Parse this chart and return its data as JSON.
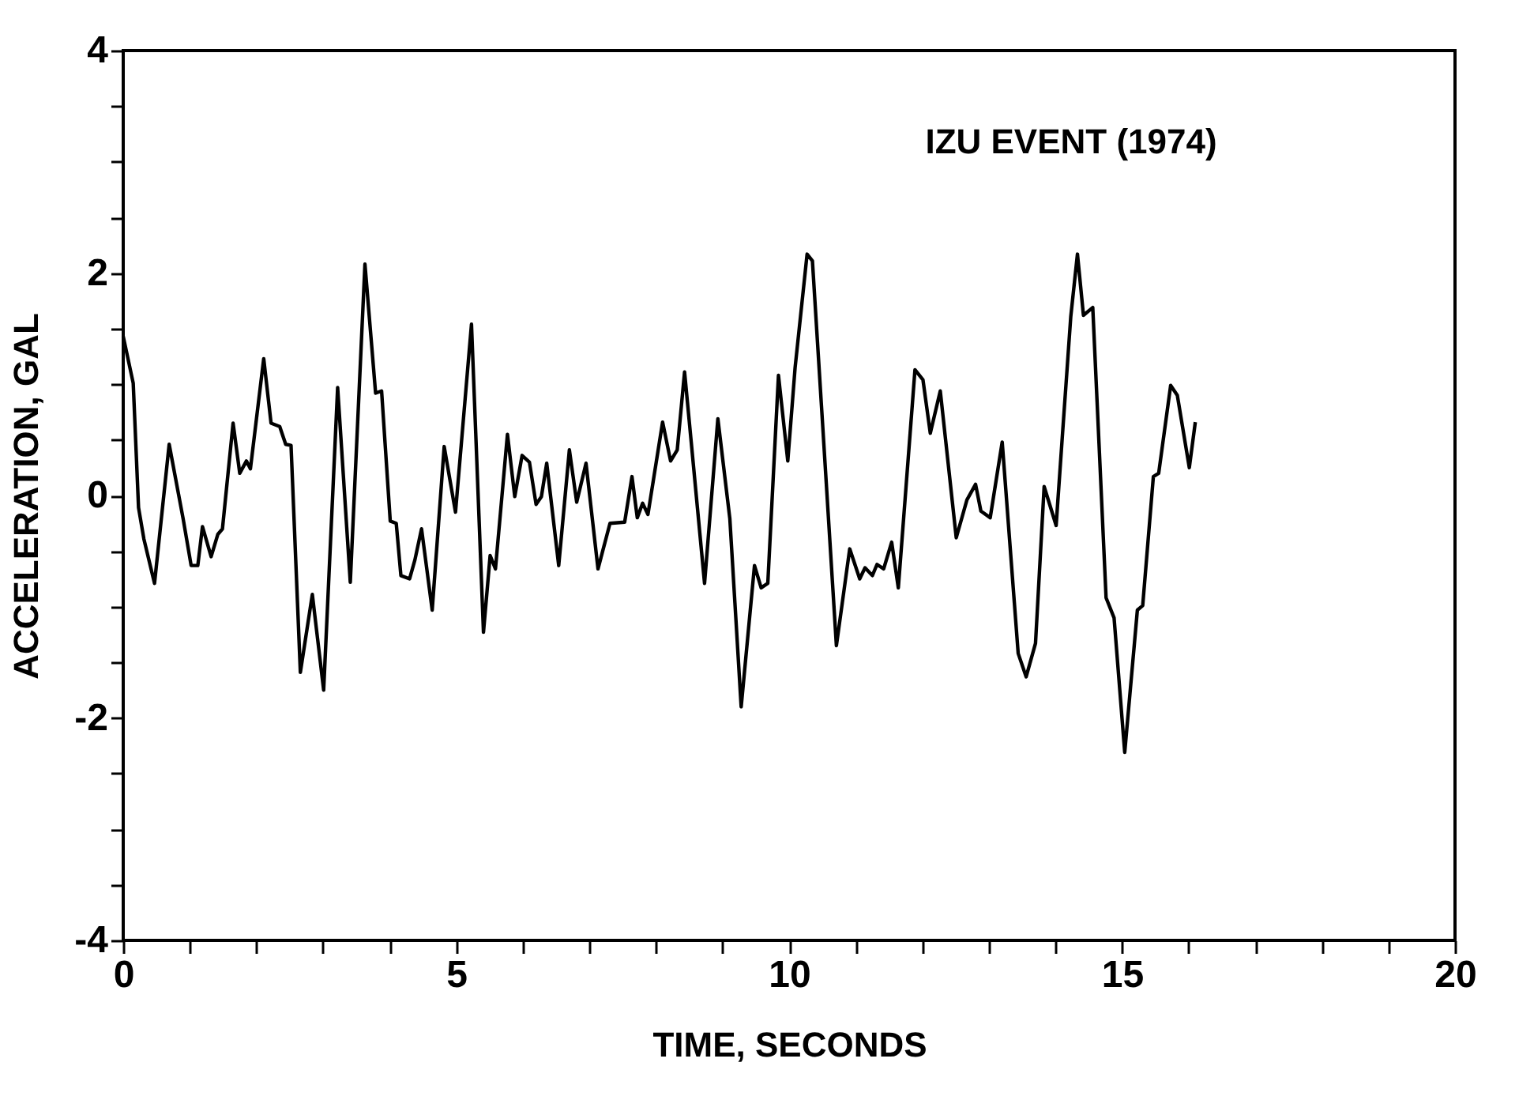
{
  "chart_data": {
    "type": "line",
    "title": "IZU  EVENT  (1974)",
    "xlabel": "TIME,  SECONDS",
    "ylabel": "ACCELERATION,  GAL",
    "series": [
      {
        "color": "#000000",
        "x": [
          0,
          0.15,
          0.23,
          0.31,
          0.47,
          0.69,
          0.9,
          1.02,
          1.12,
          1.19,
          1.32,
          1.42,
          1.49,
          1.65,
          1.75,
          1.85,
          1.91,
          2.11,
          2.22,
          2.35,
          2.44,
          2.52,
          2.66,
          2.84,
          3.01,
          3.22,
          3.41,
          3.63,
          3.79,
          3.88,
          4.01,
          4.1,
          4.17,
          4.3,
          4.38,
          4.48,
          4.64,
          4.82,
          4.99,
          5.23,
          5.41,
          5.51,
          5.59,
          5.77,
          5.88,
          5.99,
          6.1,
          6.2,
          6.28,
          6.36,
          6.54,
          6.7,
          6.81,
          6.95,
          7.13,
          7.31,
          7.53,
          7.64,
          7.72,
          7.8,
          7.88,
          8.1,
          8.22,
          8.32,
          8.43,
          8.53,
          8.73,
          8.93,
          9.11,
          9.28,
          9.48,
          9.58,
          9.68,
          9.84,
          9.98,
          10.09,
          10.27,
          10.35,
          10.71,
          10.91,
          11.06,
          11.14,
          11.25,
          11.32,
          11.42,
          11.54,
          11.64,
          11.89,
          12.01,
          12.12,
          12.27,
          12.51,
          12.67,
          12.8,
          12.88,
          13.02,
          13.2,
          13.44,
          13.56,
          13.7,
          13.83,
          14.01,
          14.11,
          14.23,
          14.33,
          14.42,
          14.56,
          14.76,
          14.88,
          15.04,
          15.23,
          15.31,
          15.47,
          15.55,
          15.73,
          15.83,
          16.01,
          16.1
        ],
        "values": [
          1.43,
          1.01,
          -0.11,
          -0.39,
          -0.79,
          0.46,
          -0.21,
          -0.63,
          -0.63,
          -0.28,
          -0.55,
          -0.35,
          -0.3,
          0.65,
          0.2,
          0.31,
          0.24,
          1.23,
          0.65,
          0.62,
          0.46,
          0.45,
          -1.59,
          -0.89,
          -1.75,
          0.97,
          -0.78,
          2.08,
          0.92,
          0.94,
          -0.23,
          -0.25,
          -0.72,
          -0.75,
          -0.58,
          -0.3,
          -1.03,
          0.44,
          -0.15,
          1.54,
          -1.23,
          -0.54,
          -0.66,
          0.55,
          -0.01,
          0.36,
          0.3,
          -0.08,
          -0.01,
          0.29,
          -0.63,
          0.41,
          -0.06,
          0.29,
          -0.66,
          -0.25,
          -0.24,
          0.17,
          -0.2,
          -0.07,
          -0.17,
          0.66,
          0.31,
          0.41,
          1.11,
          0.48,
          -0.79,
          0.69,
          -0.21,
          -1.9,
          -0.63,
          -0.83,
          -0.79,
          1.08,
          0.31,
          1.15,
          2.17,
          2.11,
          -1.35,
          -0.48,
          -0.75,
          -0.65,
          -0.72,
          -0.62,
          -0.66,
          -0.42,
          -0.83,
          1.13,
          1.04,
          0.56,
          0.94,
          -0.38,
          -0.04,
          0.1,
          -0.14,
          -0.2,
          0.48,
          -1.42,
          -1.63,
          -1.33,
          0.08,
          -0.27,
          0.59,
          1.61,
          2.17,
          1.62,
          1.69,
          -0.92,
          -1.1,
          -2.31,
          -1.03,
          -0.99,
          0.17,
          0.2,
          0.99,
          0.9,
          0.25,
          0.66
        ]
      }
    ],
    "xlim": [
      0,
      20
    ],
    "ylim": [
      -4,
      4
    ],
    "xticks": [
      0,
      {
        "value": 1,
        "label": null
      },
      {
        "value": 2,
        "label": null
      },
      {
        "value": 3,
        "label": null
      },
      {
        "value": 4,
        "label": null
      },
      5,
      {
        "value": 6,
        "label": null
      },
      {
        "value": 7,
        "label": null
      },
      {
        "value": 8,
        "label": null
      },
      {
        "value": 9,
        "label": null
      },
      10,
      {
        "value": 11,
        "label": null
      },
      {
        "value": 12,
        "label": null
      },
      {
        "value": 13,
        "label": null
      },
      {
        "value": 14,
        "label": null
      },
      15,
      {
        "value": 16,
        "label": null
      },
      {
        "value": 17,
        "label": null
      },
      {
        "value": 18,
        "label": null
      },
      {
        "value": 19,
        "label": null
      },
      20
    ],
    "yticks": [
      -4,
      {
        "value": -3.5,
        "label": null
      },
      {
        "value": -3,
        "label": null
      },
      {
        "value": -2.5,
        "label": null
      },
      -2,
      {
        "value": -1.5,
        "label": null
      },
      {
        "value": -1,
        "label": null
      },
      {
        "value": -0.5,
        "label": null
      },
      0,
      {
        "value": 0.5,
        "label": null
      },
      {
        "value": 1,
        "label": null
      },
      {
        "value": 1.5,
        "label": null
      },
      2,
      {
        "value": 2.5,
        "label": null
      },
      {
        "value": 3,
        "label": null
      },
      {
        "value": 3.5,
        "label": null
      },
      4
    ],
    "grid": false,
    "marker": "none",
    "line_style": "solid"
  }
}
